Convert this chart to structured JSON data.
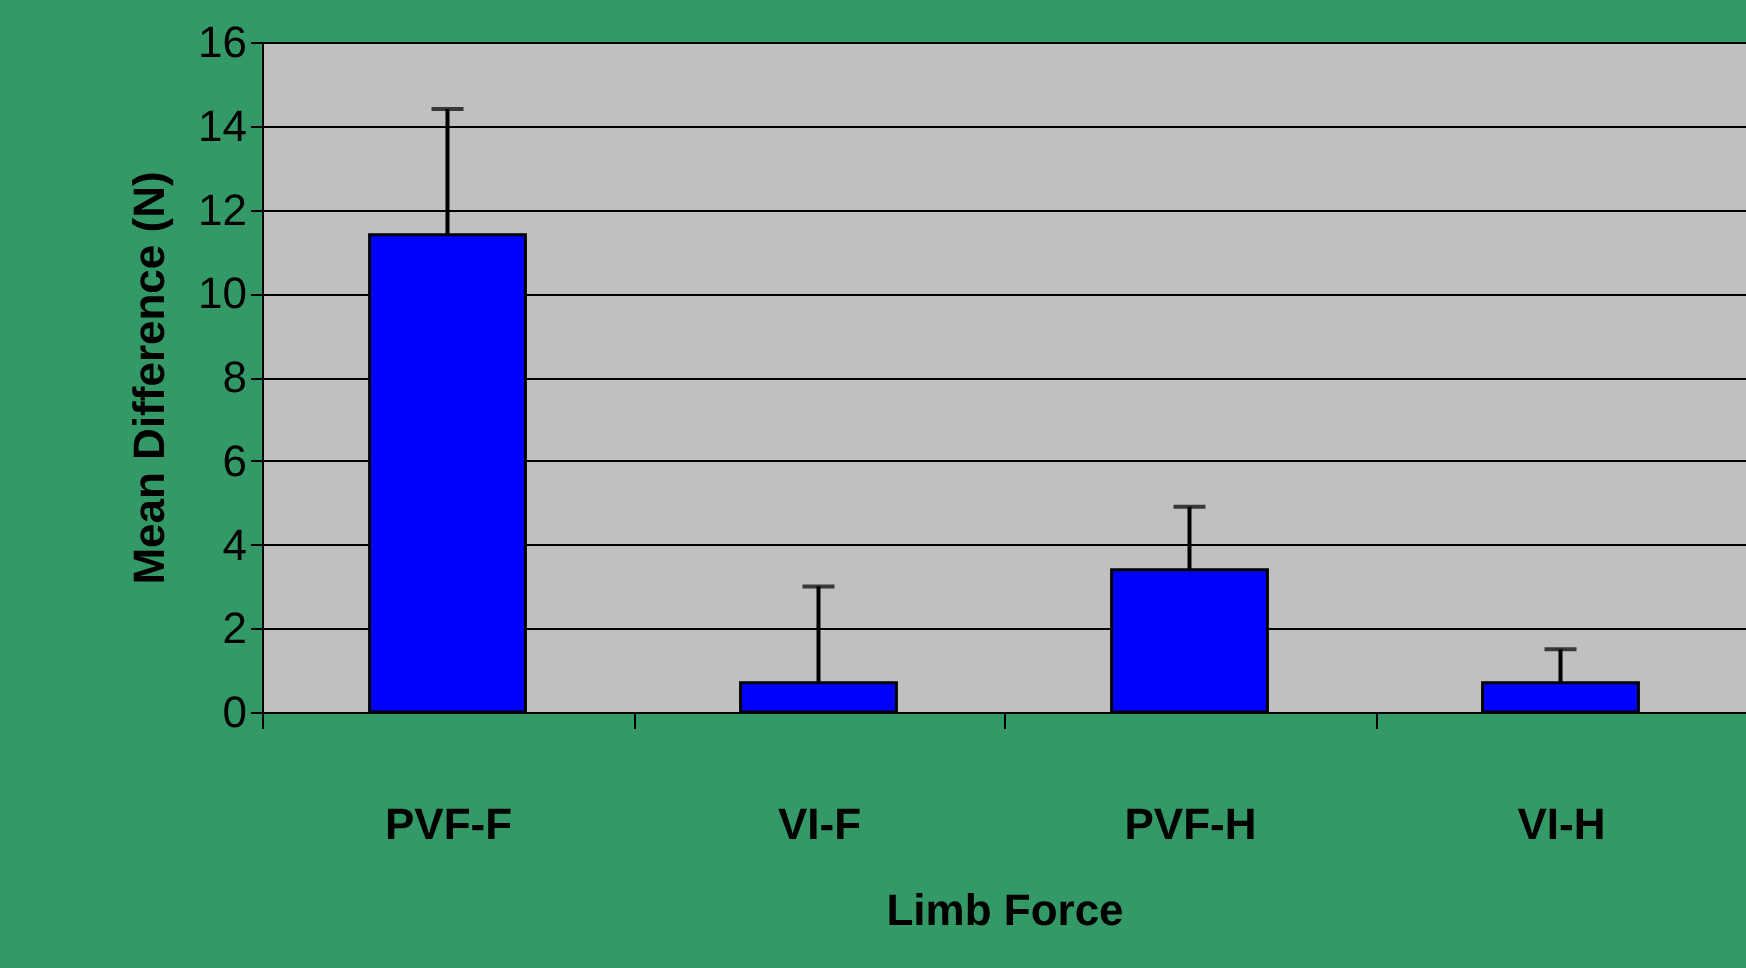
{
  "chart_data": {
    "type": "bar",
    "xlabel": "Limb Force",
    "ylabel": "Mean Difference (N)",
    "categories": [
      "PVF-F",
      "VI-F",
      "PVF-H",
      "VI-H"
    ],
    "values": [
      11.4,
      0.7,
      3.4,
      0.7
    ],
    "errors": [
      [
        11.4,
        14.4
      ],
      [
        0.7,
        3.0
      ],
      [
        3.4,
        4.9
      ],
      [
        0.7,
        1.5
      ]
    ],
    "color": "#0000ff",
    "ylim": [
      0,
      16
    ],
    "yticks": [
      0,
      2,
      4,
      6,
      8,
      10,
      12,
      14,
      16
    ],
    "grid": "y"
  }
}
